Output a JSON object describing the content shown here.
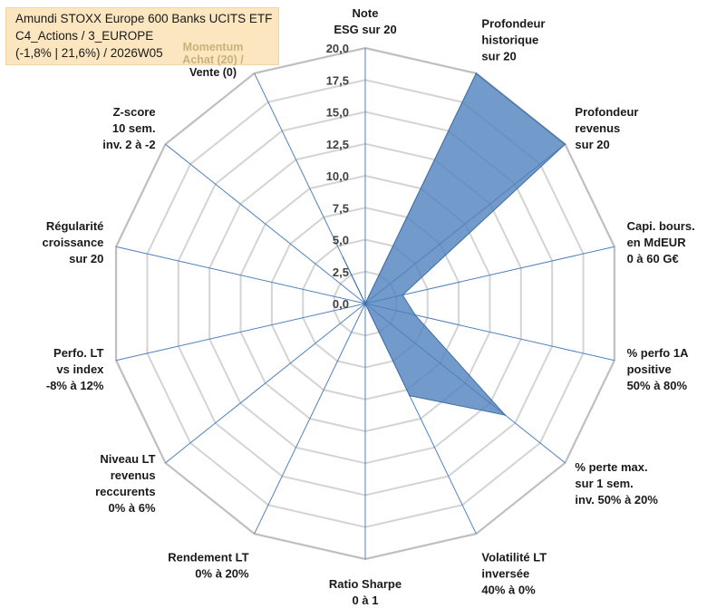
{
  "header": {
    "title_line1": "Amundi STOXX Europe 600 Banks UCITS ETF",
    "title_line2": "C4_Actions / 3_EUROPE",
    "title_line3": "(-1,8% | 21,6%) / 2026W05",
    "momentum_line1": "Momentum",
    "momentum_line2": "Achat (20) /",
    "momentum_line3": "Vente (0)",
    "momentum_color": "#c8b27a",
    "momentum_line3_color": "#1a1a1a",
    "box_color": "#fbe6c0"
  },
  "chart_data": {
    "type": "radar",
    "rmin": 0,
    "rmax": 20,
    "tick_step": 2.5,
    "tick_labels": [
      "0,0",
      "2,5",
      "5,0",
      "7,5",
      "10,0",
      "12,5",
      "15,0",
      "17,5",
      "20,0"
    ],
    "grid": true,
    "legend": "none",
    "fill_color": "#4f81bd",
    "axes": [
      {
        "label": [
          "Note",
          "ESG sur 20"
        ],
        "value": 0
      },
      {
        "label": [
          "Profondeur",
          "historique",
          "sur 20"
        ],
        "value": 20
      },
      {
        "label": [
          "Profondeur",
          "revenus",
          "sur 20"
        ],
        "value": 20
      },
      {
        "label": [
          "Capi. bours.",
          "en MdEUR",
          "0 à 60 G€"
        ],
        "value": 3
      },
      {
        "label": [
          "% perfo 1A",
          "positive",
          "50% à 80%"
        ],
        "value": 4
      },
      {
        "label": [
          "% perte max.",
          "sur 1 sem.",
          "inv. 50% à 20%"
        ],
        "value": 14
      },
      {
        "label": [
          "Volatilité LT",
          "inversée",
          "40% à 0%"
        ],
        "value": 8
      },
      {
        "label": [
          "Ratio Sharpe",
          "0 à 1"
        ],
        "value": 0
      },
      {
        "label": [
          "Rendement LT",
          "0% à 20%"
        ],
        "value": 0
      },
      {
        "label": [
          "Niveau LT",
          "revenus",
          "reccurents",
          "0% à 6%"
        ],
        "value": 0
      },
      {
        "label": [
          "Perfo. LT",
          "vs index",
          "-8% à 12%"
        ],
        "value": 0
      },
      {
        "label": [
          "Régularité",
          "croissance",
          "sur 20"
        ],
        "value": 0
      },
      {
        "label": [
          "Z-score",
          "10 sem.",
          "inv. 2 à -2"
        ],
        "value": 0
      },
      {
        "label": [
          "Momentum",
          "Achat (20) /",
          "Vente (0)"
        ],
        "value": 4
      }
    ]
  }
}
